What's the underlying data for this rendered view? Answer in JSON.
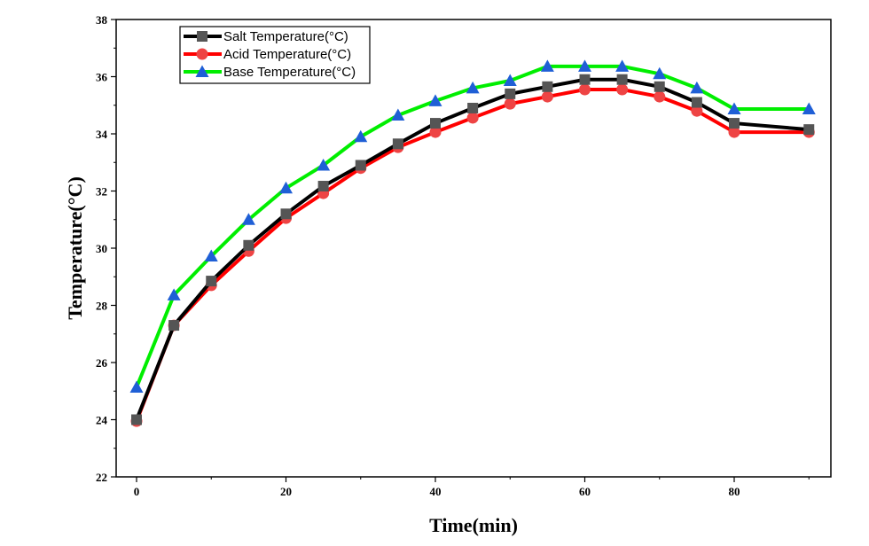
{
  "chart_data": {
    "type": "line",
    "title": "",
    "xlabel": "Time(min)",
    "ylabel": "Temperature(°C)",
    "xlim": [
      -3,
      93
    ],
    "ylim": [
      22,
      38
    ],
    "xticks": [
      0,
      20,
      40,
      60,
      80
    ],
    "yticks": [
      22,
      24,
      26,
      28,
      30,
      32,
      34,
      36,
      38
    ],
    "grid": false,
    "legend_position": "top-left",
    "x": [
      0,
      5,
      10,
      15,
      20,
      25,
      30,
      35,
      40,
      45,
      50,
      55,
      60,
      65,
      70,
      75,
      80,
      90
    ],
    "series": [
      {
        "name": "Salt Temperature(°C)",
        "color": "#000000",
        "marker_color": "#555555",
        "marker": "square",
        "values": [
          24.0,
          27.3,
          28.85,
          30.1,
          31.2,
          32.17,
          32.9,
          33.65,
          34.37,
          34.9,
          35.4,
          35.65,
          35.9,
          35.9,
          35.65,
          35.1,
          34.37,
          34.15
        ]
      },
      {
        "name": "Acid Temperature(°C)",
        "color": "#ff0000",
        "marker_color": "#ee4444",
        "marker": "circle",
        "values": [
          23.95,
          27.3,
          28.7,
          29.9,
          31.05,
          31.92,
          32.8,
          33.53,
          34.06,
          34.56,
          35.05,
          35.3,
          35.55,
          35.55,
          35.3,
          34.8,
          34.06,
          34.06
        ]
      },
      {
        "name": "Base Temperature(°C)",
        "color": "#00ee00",
        "marker_color": "#1f5fd6",
        "marker": "triangle",
        "values": [
          25.13,
          28.36,
          29.72,
          31.0,
          32.1,
          32.9,
          33.9,
          34.65,
          35.15,
          35.6,
          35.86,
          36.36,
          36.36,
          36.36,
          36.1,
          35.6,
          34.87,
          34.87
        ]
      }
    ]
  }
}
